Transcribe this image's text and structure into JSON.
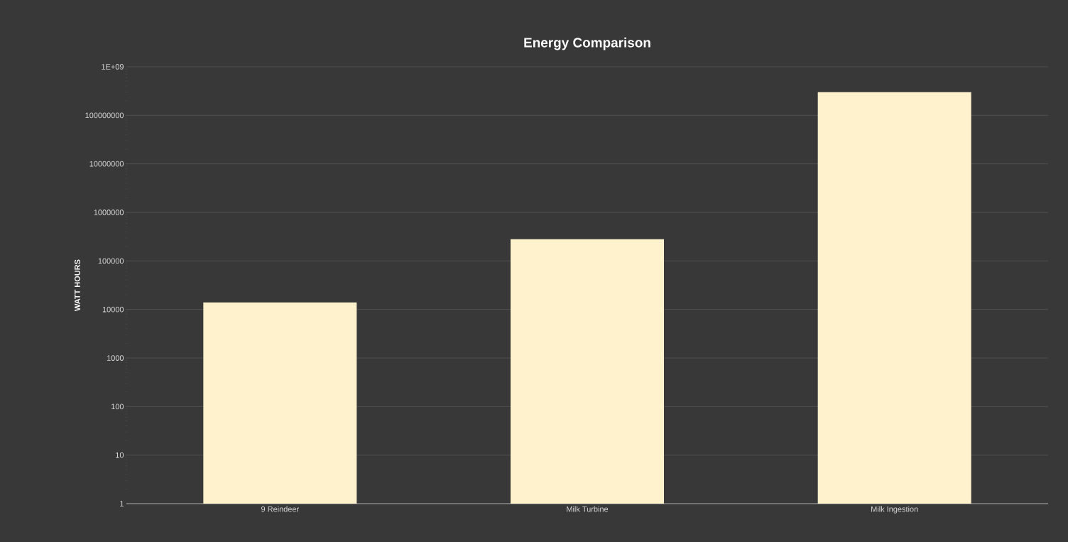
{
  "chart_data": {
    "type": "bar",
    "title": "Energy Comparison",
    "ylabel": "WATT HOURS",
    "categories": [
      "9 Reindeer",
      "Milk Turbine",
      "Milk Ingestion"
    ],
    "values": [
      14000,
      280000,
      300000000
    ],
    "color": "#fff2cc",
    "log": "y",
    "ylim": [
      1,
      1000000000
    ],
    "yticks": [
      1,
      10,
      100,
      1000,
      10000,
      100000,
      1000000,
      10000000,
      100000000,
      {
        "value": 1000000000,
        "label": "1E+09"
      }
    ],
    "grid": "y"
  }
}
